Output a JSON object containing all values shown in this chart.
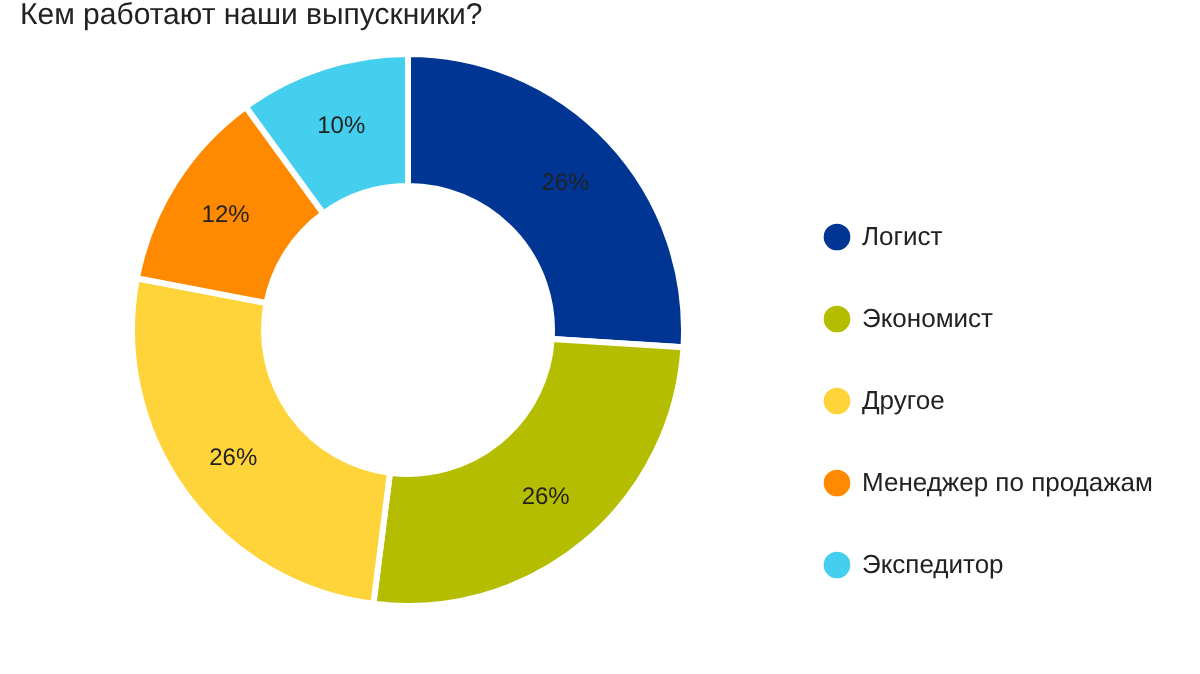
{
  "chart_data": {
    "type": "donut",
    "title": "Кем работают наши выпускники?",
    "categories": [
      "Логист",
      "Экономист",
      "Другое",
      "Менеджер по продажам",
      "Экспедитор"
    ],
    "values": [
      26,
      26,
      26,
      12,
      10
    ],
    "value_labels": [
      "26%",
      "26%",
      "26%",
      "12%",
      "10%"
    ],
    "colors": [
      "#003594",
      "#b5bd00",
      "#ffd43b",
      "#ff8a00",
      "#45cfee"
    ],
    "legend": "right"
  }
}
